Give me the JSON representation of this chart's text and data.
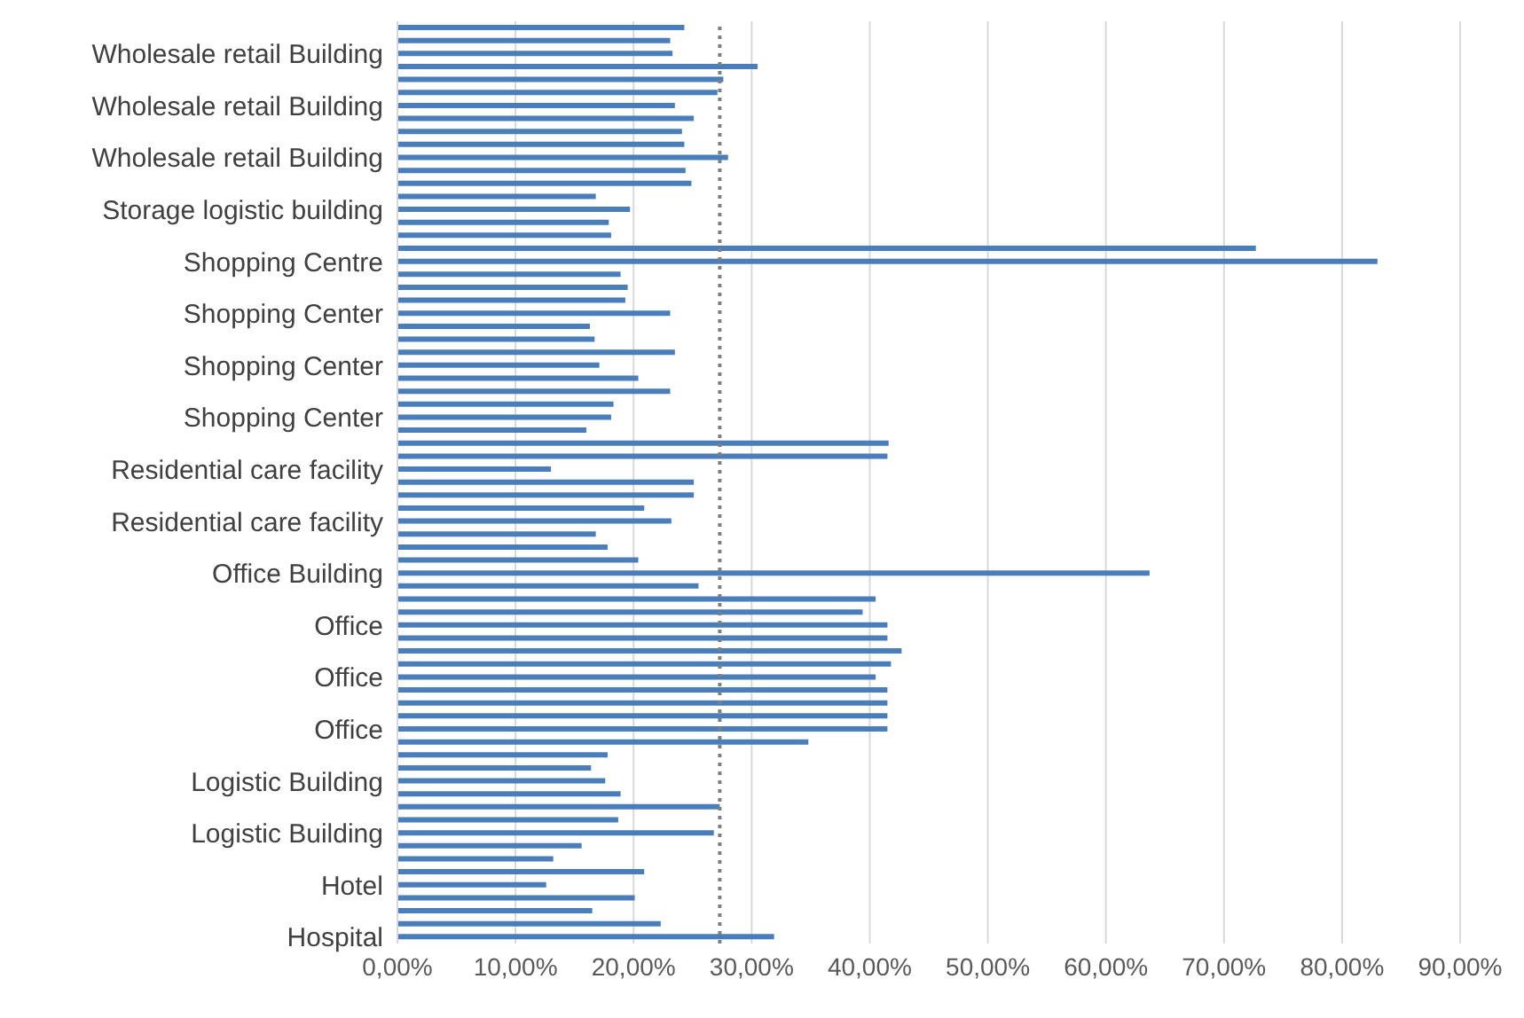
{
  "chart_data": {
    "type": "bar",
    "orientation": "horizontal",
    "categories": [
      null,
      null,
      "Wholesale retail Building",
      null,
      null,
      null,
      "Wholesale retail Building",
      null,
      null,
      null,
      "Wholesale retail Building",
      null,
      null,
      null,
      "Storage logistic building",
      null,
      null,
      null,
      "Shopping Centre",
      null,
      null,
      null,
      "Shopping Center",
      null,
      null,
      null,
      "Shopping Center",
      null,
      null,
      null,
      "Shopping Center",
      null,
      null,
      null,
      "Residential care facility",
      null,
      null,
      null,
      "Residential care facility",
      null,
      null,
      null,
      "Office Building",
      null,
      null,
      null,
      "Office",
      null,
      null,
      null,
      "Office",
      null,
      null,
      null,
      "Office",
      null,
      null,
      null,
      "Logistic Building",
      null,
      null,
      null,
      "Logistic Building",
      null,
      null,
      null,
      "Hotel",
      null,
      null,
      null,
      "Hospital"
    ],
    "values": [
      24.3,
      23.1,
      23.3,
      30.5,
      27.6,
      27.1,
      23.5,
      25.1,
      24.1,
      24.3,
      28.0,
      24.4,
      24.9,
      16.8,
      19.7,
      17.9,
      18.1,
      72.7,
      83.0,
      18.9,
      19.5,
      19.3,
      23.1,
      16.3,
      16.7,
      23.5,
      17.1,
      20.4,
      23.1,
      18.3,
      18.1,
      16.0,
      41.6,
      41.5,
      13.0,
      25.1,
      25.1,
      20.9,
      23.2,
      16.8,
      17.8,
      20.4,
      63.7,
      25.5,
      40.5,
      39.4,
      41.5,
      41.5,
      42.7,
      41.8,
      40.5,
      41.5,
      41.5,
      41.5,
      41.5,
      34.8,
      17.8,
      16.4,
      17.6,
      18.9,
      27.3,
      18.7,
      26.8,
      15.6,
      13.2,
      20.9,
      12.6,
      20.1,
      16.5,
      22.3,
      31.9
    ],
    "color": "#4a7ebb",
    "xlim": [
      0,
      90
    ],
    "xticks": [
      {
        "value": 0,
        "label": "0,00%"
      },
      {
        "value": 10,
        "label": "10,00%"
      },
      {
        "value": 20,
        "label": "20,00%"
      },
      {
        "value": 30,
        "label": "30,00%"
      },
      {
        "value": 40,
        "label": "40,00%"
      },
      {
        "value": 50,
        "label": "50,00%"
      },
      {
        "value": 60,
        "label": "60,00%"
      },
      {
        "value": 70,
        "label": "70,00%"
      },
      {
        "value": 80,
        "label": "80,00%"
      },
      {
        "value": 90,
        "label": "90,00%"
      }
    ],
    "grid": "x",
    "ref_lines": [
      {
        "axis": "x",
        "value": 27.3,
        "color": "#7f7f7f",
        "line_style": "dotted"
      }
    ]
  }
}
